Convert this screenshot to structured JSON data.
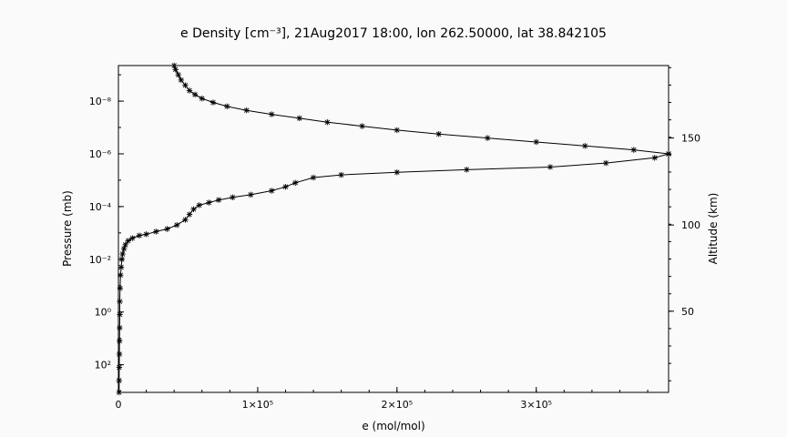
{
  "chart_data": {
    "type": "line",
    "title": "e Density [cm⁻³], 21Aug2017 18:00, lon 262.50000, lat 38.842105",
    "xlabel": "e (mol/mol)",
    "ylabel": "Pressure (mb)",
    "y2label": "Altitude (km)",
    "xlim": [
      0,
      395000
    ],
    "ylim_log10_pressure": [
      -9.35,
      3.05
    ],
    "yscale": "log",
    "grid": false,
    "x_ticks": [
      {
        "value": 0,
        "label": "0"
      },
      {
        "value": 100000,
        "label": "1×10⁵"
      },
      {
        "value": 200000,
        "label": "2×10⁵"
      },
      {
        "value": 300000,
        "label": "3×10⁵"
      }
    ],
    "y_ticks": [
      {
        "value": 1e-08,
        "label": "10⁻⁸"
      },
      {
        "value": 1e-06,
        "label": "10⁻⁶"
      },
      {
        "value": 0.0001,
        "label": "10⁻⁴"
      },
      {
        "value": 0.01,
        "label": "10⁻²"
      },
      {
        "value": 1,
        "label": "10⁰"
      },
      {
        "value": 100,
        "label": "10²"
      }
    ],
    "y2_ticks": [
      {
        "value": 50,
        "label": "50",
        "log10p": -0.03
      },
      {
        "value": 100,
        "label": "100",
        "log10p": -3.3
      },
      {
        "value": 150,
        "label": "150",
        "log10p": -6.6
      }
    ],
    "series": [
      {
        "marker": "asterisk",
        "points": [
          [
            500,
            3.05
          ],
          [
            500,
            2.6
          ],
          [
            600,
            2.1
          ],
          [
            700,
            1.6
          ],
          [
            800,
            1.1
          ],
          [
            900,
            0.6
          ],
          [
            1000,
            0.1
          ],
          [
            1000,
            -0.4
          ],
          [
            1200,
            -0.9
          ],
          [
            1500,
            -1.4
          ],
          [
            2000,
            -1.7
          ],
          [
            2500,
            -2.0
          ],
          [
            3000,
            -2.2
          ],
          [
            4000,
            -2.4
          ],
          [
            5000,
            -2.55
          ],
          [
            7000,
            -2.7
          ],
          [
            10000,
            -2.8
          ],
          [
            15000,
            -2.9
          ],
          [
            20000,
            -2.95
          ],
          [
            27000,
            -3.05
          ],
          [
            35000,
            -3.15
          ],
          [
            42000,
            -3.3
          ],
          [
            48000,
            -3.5
          ],
          [
            51000,
            -3.7
          ],
          [
            54000,
            -3.9
          ],
          [
            58000,
            -4.05
          ],
          [
            65000,
            -4.15
          ],
          [
            72000,
            -4.25
          ],
          [
            82000,
            -4.35
          ],
          [
            95000,
            -4.45
          ],
          [
            110000,
            -4.6
          ],
          [
            120000,
            -4.75
          ],
          [
            127000,
            -4.9
          ],
          [
            140000,
            -5.1
          ],
          [
            160000,
            -5.2
          ],
          [
            200000,
            -5.3
          ],
          [
            250000,
            -5.4
          ],
          [
            310000,
            -5.5
          ],
          [
            350000,
            -5.65
          ],
          [
            385000,
            -5.85
          ],
          [
            395000,
            -6.0
          ]
        ]
      },
      {
        "marker": "asterisk",
        "points": [
          [
            395000,
            -6.0
          ],
          [
            370000,
            -6.15
          ],
          [
            335000,
            -6.3
          ],
          [
            300000,
            -6.45
          ],
          [
            265000,
            -6.6
          ],
          [
            230000,
            -6.75
          ],
          [
            200000,
            -6.9
          ],
          [
            175000,
            -7.05
          ],
          [
            150000,
            -7.2
          ],
          [
            130000,
            -7.35
          ],
          [
            110000,
            -7.5
          ],
          [
            92000,
            -7.65
          ],
          [
            78000,
            -7.8
          ],
          [
            68000,
            -7.95
          ],
          [
            60000,
            -8.1
          ],
          [
            55000,
            -8.25
          ],
          [
            51000,
            -8.4
          ],
          [
            48000,
            -8.6
          ],
          [
            45000,
            -8.8
          ],
          [
            43000,
            -9.0
          ],
          [
            41000,
            -9.2
          ],
          [
            40000,
            -9.35
          ]
        ]
      }
    ]
  }
}
